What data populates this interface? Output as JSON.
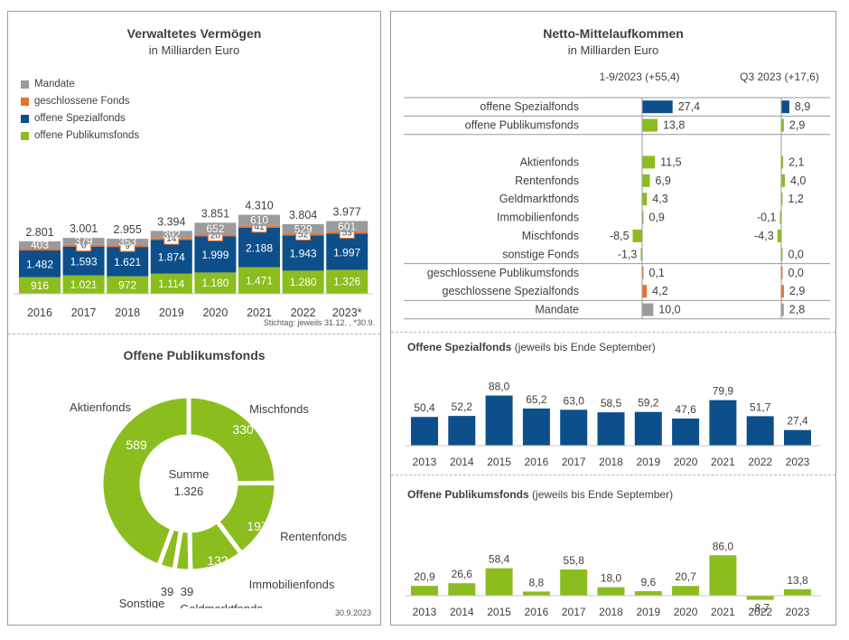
{
  "colors": {
    "mandate": "#9b9b9b",
    "closed": "#e8722c",
    "special": "#0d4f8b",
    "public": "#8cbd1f",
    "text": "#404040",
    "border": "#9a9a9a"
  },
  "stacked": {
    "title": "Verwaltetes Vermögen",
    "subtitle": "in Milliarden Euro",
    "note": "Stichtag: jeweils 31.12. , *30.9."
  },
  "donut": {
    "title": "Offene Publikumsfonds",
    "center_label": "Summe",
    "center_value": "1.326",
    "date": "30.9.2023"
  },
  "netflow": {
    "title": "Netto-Mittelaufkommen",
    "subtitle": "in Milliarden Euro",
    "col1": "1-9/2023 (+55,4)",
    "col2": "Q3 2023 (+17,6)"
  },
  "special_chart": {
    "title_bold": "Offene Spezialfonds",
    "title_rest": "(jeweils bis Ende September)"
  },
  "public_chart": {
    "title_bold": "Offene Publikumsfonds",
    "title_rest": "(jeweils bis Ende September)"
  },
  "chart_data": [
    {
      "type": "bar",
      "title": "Verwaltetes Vermögen",
      "subtitle": "in Milliarden Euro",
      "categories": [
        "2016",
        "2017",
        "2018",
        "2019",
        "2020",
        "2021",
        "2022",
        "2023*"
      ],
      "totals": [
        "2.801",
        "3.001",
        "2.955",
        "3.394",
        "3.851",
        "4.310",
        "3.804",
        "3.977"
      ],
      "series": [
        {
          "name": "offene Publikumsfonds",
          "values": [
            916,
            1021,
            972,
            1114,
            1180,
            1471,
            1280,
            1326
          ],
          "labels": [
            "916",
            "1.021",
            "972",
            "1.114",
            "1.180",
            "1.471",
            "1.280",
            "1.326"
          ]
        },
        {
          "name": "offene Spezialfonds",
          "values": [
            1482,
            1593,
            1621,
            1874,
            1999,
            2188,
            1943,
            1997
          ],
          "labels": [
            "1.482",
            "1.593",
            "1.621",
            "1.874",
            "1.999",
            "2.188",
            "1.943",
            "1.997"
          ]
        },
        {
          "name": "geschlossene Fonds",
          "values": [
            0,
            6,
            9,
            14,
            20,
            41,
            52,
            53
          ],
          "labels": [
            "",
            "6",
            "9",
            "14",
            "20",
            "41",
            "52",
            "53"
          ]
        },
        {
          "name": "Mandate",
          "values": [
            403,
            379,
            353,
            392,
            652,
            610,
            529,
            601
          ],
          "labels": [
            "403",
            "379",
            "353",
            "392",
            "652",
            "610",
            "529",
            "601"
          ]
        }
      ],
      "legend": [
        "Mandate",
        "geschlossene Fonds",
        "offene Spezialfonds",
        "offene Publikumsfonds"
      ]
    },
    {
      "type": "pie",
      "title": "Offene Publikumsfonds",
      "slices": [
        {
          "name": "Aktienfonds",
          "value": 589
        },
        {
          "name": "Mischfonds",
          "value": 330
        },
        {
          "name": "Rentenfonds",
          "value": 197
        },
        {
          "name": "Immobilienfonds",
          "value": 132
        },
        {
          "name": "Geldmarktfonds",
          "value": 39
        },
        {
          "name": "Sonstige",
          "value": 39
        }
      ]
    },
    {
      "type": "bar",
      "title": "Netto-Mittelaufkommen",
      "rows": [
        {
          "label": "offene Spezialfonds",
          "v1": 27.4,
          "t1": "27,4",
          "v2": 8.9,
          "t2": "8,9",
          "color": "special",
          "hl": true
        },
        {
          "label": "offene Publikumsfonds",
          "v1": 13.8,
          "t1": "13,8",
          "v2": 2.9,
          "t2": "2,9",
          "color": "public",
          "hl": false
        },
        {
          "label": "",
          "v1": null,
          "t1": "",
          "v2": null,
          "t2": "",
          "color": "",
          "hl": false
        },
        {
          "label": "Aktienfonds",
          "v1": 11.5,
          "t1": "11,5",
          "v2": 2.1,
          "t2": "2,1",
          "color": "public",
          "hl": false
        },
        {
          "label": "Rentenfonds",
          "v1": 6.9,
          "t1": "6,9",
          "v2": 4.0,
          "t2": "4,0",
          "color": "public",
          "hl": false
        },
        {
          "label": "Geldmarktfonds",
          "v1": 4.3,
          "t1": "4,3",
          "v2": 1.2,
          "t2": "1,2",
          "color": "public",
          "hl": false
        },
        {
          "label": "Immobilienfonds",
          "v1": 0.9,
          "t1": "0,9",
          "v2": -0.1,
          "t2": "-0,1",
          "color": "public",
          "hl": false
        },
        {
          "label": "Mischfonds",
          "v1": -8.5,
          "t1": "-8,5",
          "v2": -4.3,
          "t2": "-4,3",
          "color": "public",
          "hl": false
        },
        {
          "label": "sonstige Fonds",
          "v1": -1.3,
          "t1": "-1,3",
          "v2": 0.0,
          "t2": "0,0",
          "color": "public",
          "hl": false
        },
        {
          "label": "geschlossene Publikumsfonds",
          "v1": 0.1,
          "t1": "0,1",
          "v2": 0.0,
          "t2": "0,0",
          "color": "closed",
          "hl": false
        },
        {
          "label": "geschlossene Spezialfonds",
          "v1": 4.2,
          "t1": "4,2",
          "v2": 2.9,
          "t2": "2,9",
          "color": "closed",
          "hl": true
        },
        {
          "label": "Mandate",
          "v1": 10.0,
          "t1": "10,0",
          "v2": 2.8,
          "t2": "2,8",
          "color": "mandate",
          "hl": false
        }
      ]
    },
    {
      "type": "bar",
      "title": "Offene Spezialfonds",
      "categories": [
        "2013",
        "2014",
        "2015",
        "2016",
        "2017",
        "2018",
        "2019",
        "2020",
        "2021",
        "2022",
        "2023"
      ],
      "values": [
        50.4,
        52.2,
        88.0,
        65.2,
        63.0,
        58.5,
        59.2,
        47.6,
        79.9,
        51.7,
        27.4
      ],
      "labels": [
        "50,4",
        "52,2",
        "88,0",
        "65,2",
        "63,0",
        "58,5",
        "59,2",
        "47,6",
        "79,9",
        "51,7",
        "27,4"
      ]
    },
    {
      "type": "bar",
      "title": "Offene Publikumsfonds",
      "categories": [
        "2013",
        "2014",
        "2015",
        "2016",
        "2017",
        "2018",
        "2019",
        "2020",
        "2021",
        "2022",
        "2023"
      ],
      "values": [
        20.9,
        26.6,
        58.4,
        8.8,
        55.8,
        18.0,
        9.6,
        20.7,
        86.0,
        -8.7,
        13.8
      ],
      "labels": [
        "20,9",
        "26,6",
        "58,4",
        "8,8",
        "55,8",
        "18,0",
        "9,6",
        "20,7",
        "86,0",
        "-8,7",
        "13,8"
      ]
    }
  ]
}
